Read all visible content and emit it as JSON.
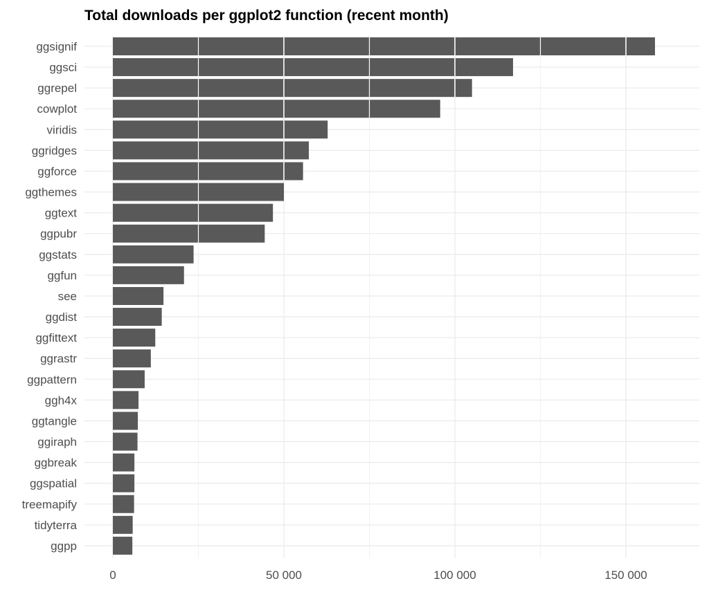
{
  "chart_data": {
    "type": "bar",
    "orientation": "horizontal",
    "title": "Total downloads per ggplot2 function (recent month)",
    "xlabel": "",
    "ylabel": "",
    "categories": [
      "ggsignif",
      "ggsci",
      "ggrepel",
      "cowplot",
      "viridis",
      "ggridges",
      "ggforce",
      "ggthemes",
      "ggtext",
      "ggpubr",
      "ggstats",
      "ggfun",
      "see",
      "ggdist",
      "ggfittext",
      "ggrastr",
      "ggpattern",
      "ggh4x",
      "ggtangle",
      "ggiraph",
      "ggbreak",
      "ggspatial",
      "treemapify",
      "tidyterra",
      "ggpp"
    ],
    "values": [
      158500,
      117000,
      105000,
      95700,
      62800,
      57300,
      55600,
      50000,
      46800,
      44400,
      23600,
      20800,
      14800,
      14300,
      12400,
      11100,
      9300,
      7500,
      7300,
      7200,
      6300,
      6300,
      6200,
      5800,
      5700
    ],
    "xlim": [
      0,
      170000
    ],
    "x_ticks": [
      0,
      50000,
      100000,
      150000
    ],
    "x_tick_labels": [
      "0",
      "50 000",
      "100 000",
      "150 000"
    ],
    "grid": true,
    "legend": "none",
    "bar_color": "#595959",
    "grid_color": "#ebebeb"
  }
}
